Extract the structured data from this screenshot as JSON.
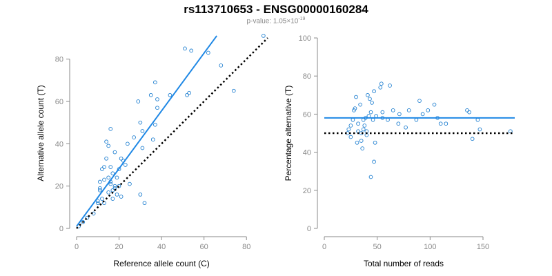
{
  "header": {
    "title": "rs113710653 - ENSG00000160284",
    "pvalue_prefix": "p-value: 1.05×10",
    "pvalue_exponent": "-19"
  },
  "colors": {
    "points": "#1f7fd0",
    "fit_line": "#1f88e5",
    "reference_line": "#000000",
    "axis": "#8a8a8a"
  },
  "chart_data": [
    {
      "type": "scatter",
      "xlabel": "Reference allele count (C)",
      "ylabel": "Alternative allele count (T)",
      "xlim": [
        0,
        90
      ],
      "ylim": [
        0,
        90
      ],
      "xticks": [
        0,
        20,
        40,
        60,
        80
      ],
      "yticks": [
        0,
        20,
        40,
        60,
        80
      ],
      "points": [
        [
          1,
          1
        ],
        [
          3,
          3
        ],
        [
          5,
          5
        ],
        [
          8,
          7
        ],
        [
          10,
          12
        ],
        [
          10,
          13
        ],
        [
          11,
          18
        ],
        [
          11,
          19
        ],
        [
          11,
          22
        ],
        [
          12,
          14
        ],
        [
          12,
          28
        ],
        [
          13,
          12
        ],
        [
          13,
          23
        ],
        [
          13,
          29
        ],
        [
          14,
          33
        ],
        [
          14,
          41
        ],
        [
          15,
          39
        ],
        [
          15,
          24
        ],
        [
          15,
          17
        ],
        [
          16,
          29
        ],
        [
          16,
          22
        ],
        [
          16,
          21
        ],
        [
          16,
          47
        ],
        [
          17,
          18
        ],
        [
          17,
          14
        ],
        [
          17,
          26
        ],
        [
          18,
          20
        ],
        [
          18,
          19
        ],
        [
          18,
          36
        ],
        [
          19,
          16
        ],
        [
          19,
          24
        ],
        [
          20,
          20
        ],
        [
          20,
          28
        ],
        [
          21,
          33
        ],
        [
          21,
          15
        ],
        [
          22,
          32
        ],
        [
          23,
          30
        ],
        [
          24,
          40
        ],
        [
          25,
          21
        ],
        [
          27,
          43
        ],
        [
          29,
          60
        ],
        [
          30,
          16
        ],
        [
          30,
          50
        ],
        [
          31,
          38
        ],
        [
          31,
          46
        ],
        [
          32,
          12
        ],
        [
          35,
          63
        ],
        [
          36,
          42
        ],
        [
          37,
          49
        ],
        [
          37,
          69
        ],
        [
          38,
          57
        ],
        [
          38,
          61
        ],
        [
          44,
          63
        ],
        [
          51,
          85
        ],
        [
          52,
          63
        ],
        [
          53,
          64
        ],
        [
          54,
          84
        ],
        [
          62,
          83
        ],
        [
          68,
          77
        ],
        [
          74,
          65
        ],
        [
          88,
          91
        ]
      ],
      "lines": [
        {
          "kind": "fit",
          "from": [
            0,
            1
          ],
          "to": [
            66,
            91
          ]
        },
        {
          "kind": "reference",
          "from": [
            0,
            0
          ],
          "to": [
            90,
            90
          ]
        }
      ]
    },
    {
      "type": "scatter",
      "xlabel": "Total number of reads",
      "ylabel": "Percentage alternative (T)",
      "xlim": [
        0,
        180
      ],
      "ylim": [
        0,
        100
      ],
      "xticks": [
        0,
        50,
        100,
        150
      ],
      "yticks": [
        0,
        20,
        40,
        60,
        80,
        100
      ],
      "points": [
        [
          22,
          50
        ],
        [
          23,
          52
        ],
        [
          25,
          54
        ],
        [
          25,
          48
        ],
        [
          27,
          57
        ],
        [
          28,
          62
        ],
        [
          29,
          63
        ],
        [
          30,
          69
        ],
        [
          31,
          45
        ],
        [
          32,
          51
        ],
        [
          32,
          55
        ],
        [
          34,
          65
        ],
        [
          35,
          50
        ],
        [
          35,
          46
        ],
        [
          36,
          42
        ],
        [
          37,
          57
        ],
        [
          37,
          52
        ],
        [
          38,
          54
        ],
        [
          39,
          58
        ],
        [
          40,
          51
        ],
        [
          40,
          49
        ],
        [
          41,
          70
        ],
        [
          42,
          59
        ],
        [
          43,
          68
        ],
        [
          44,
          27
        ],
        [
          44,
          61
        ],
        [
          45,
          66
        ],
        [
          46,
          57
        ],
        [
          47,
          35
        ],
        [
          47,
          72
        ],
        [
          48,
          45
        ],
        [
          49,
          59
        ],
        [
          53,
          74
        ],
        [
          54,
          76
        ],
        [
          55,
          61
        ],
        [
          55,
          58
        ],
        [
          60,
          57
        ],
        [
          62,
          75
        ],
        [
          65,
          62
        ],
        [
          70,
          55
        ],
        [
          71,
          60
        ],
        [
          77,
          53
        ],
        [
          80,
          62
        ],
        [
          87,
          57
        ],
        [
          90,
          67
        ],
        [
          93,
          60
        ],
        [
          98,
          62
        ],
        [
          104,
          65
        ],
        [
          107,
          58
        ],
        [
          110,
          55
        ],
        [
          115,
          55
        ],
        [
          135,
          62
        ],
        [
          137,
          61
        ],
        [
          140,
          47
        ],
        [
          145,
          57
        ],
        [
          147,
          52
        ],
        [
          176,
          51
        ]
      ],
      "lines": [
        {
          "kind": "fit",
          "from": [
            0,
            58
          ],
          "to": [
            180,
            58
          ]
        },
        {
          "kind": "reference",
          "from": [
            0,
            50
          ],
          "to": [
            180,
            50
          ]
        }
      ]
    }
  ]
}
